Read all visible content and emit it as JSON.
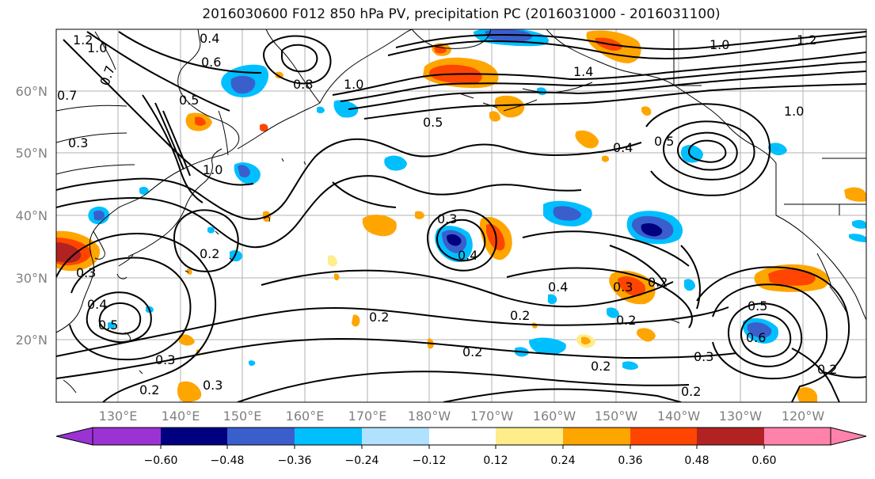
{
  "title": "2016030600 F012 850 hPa PV, precipitation PC (2016031000 - 2016031100)",
  "map": {
    "lat_ticks": [
      "60°N",
      "50°N",
      "40°N",
      "30°N",
      "20°N"
    ],
    "lon_ticks": [
      "130°E",
      "140°E",
      "150°E",
      "160°E",
      "170°E",
      "180°W",
      "170°W",
      "160°W",
      "150°W",
      "140°W",
      "130°W",
      "120°W"
    ],
    "contour_labels": [
      "1.2",
      "1.0",
      "0.7",
      "0.4",
      "0.6",
      "0.5",
      "0.8",
      "1.0",
      "0.7",
      "1.4",
      "1.0",
      "1.2",
      "1.0",
      "0.5",
      "0.4",
      "0.5",
      "0.3",
      "1.0",
      "0.3",
      "0.4",
      "0.2",
      "0.3",
      "0.4",
      "0.5",
      "0.3",
      "0.2",
      "0.3",
      "0.2",
      "0.2",
      "0.4",
      "0.3",
      "0.2",
      "0.2",
      "0.2",
      "0.5",
      "0.6",
      "0.2",
      "0.2",
      "0.3",
      "0.2"
    ]
  },
  "colorbar": {
    "ticks": [
      "−0.60",
      "−0.48",
      "−0.36",
      "−0.24",
      "−0.12",
      "0.12",
      "0.24",
      "0.36",
      "0.48",
      "0.60"
    ],
    "colors": [
      "#9b32d4",
      "#000080",
      "#3a5fcd",
      "#00bfff",
      "#b0e2ff",
      "#ffffff",
      "#ffec8b",
      "#ffa500",
      "#ff4500",
      "#b22222",
      "#ff82ab"
    ]
  }
}
